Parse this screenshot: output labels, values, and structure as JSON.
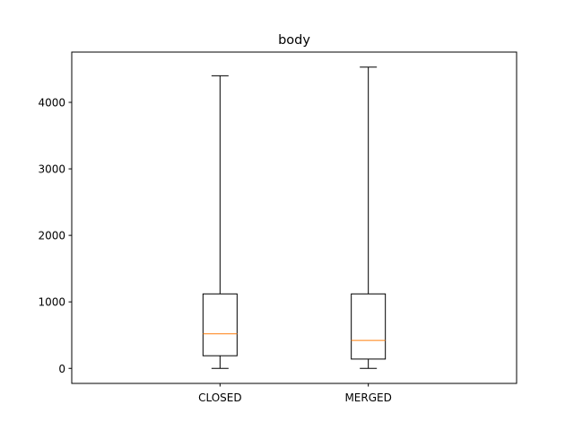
{
  "chart_data": {
    "type": "box",
    "title": "body",
    "xlabel": "",
    "ylabel": "",
    "categories": [
      "CLOSED",
      "MERGED"
    ],
    "boxes": [
      {
        "label": "CLOSED",
        "whislo": 0,
        "q1": 190,
        "median": 520,
        "q3": 1120,
        "whishi": 4400
      },
      {
        "label": "MERGED",
        "whislo": 0,
        "q1": 140,
        "median": 420,
        "q3": 1120,
        "whishi": 4530
      }
    ],
    "yticks": [
      0,
      1000,
      2000,
      3000,
      4000
    ],
    "ylim": [
      -226,
      4756
    ],
    "grid": false,
    "colors": {
      "box": "#000000",
      "median": "#ff7f0e",
      "axes": "#000000"
    }
  }
}
